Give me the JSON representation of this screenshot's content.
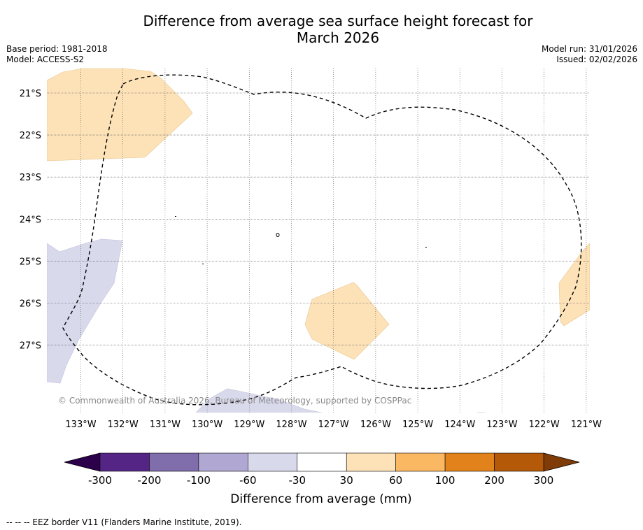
{
  "title_line1": "Difference from average sea surface height forecast for",
  "title_line2": "March 2026",
  "base_period": "Base period: 1981-2018",
  "model": "Model: ACCESS-S2",
  "model_run": "Model run: 31/01/2026",
  "issued": "Issued: 02/02/2026",
  "map": {
    "lon_labels": [
      "133°W",
      "132°W",
      "131°W",
      "130°W",
      "129°W",
      "128°W",
      "127°W",
      "126°W",
      "125°W",
      "124°W",
      "123°W",
      "122°W",
      "121°W"
    ],
    "lat_labels": [
      "21°S",
      "22°S",
      "23°S",
      "24°S",
      "25°S",
      "26°S",
      "27°S"
    ],
    "copyright": "© Commonwealth of Australia 2026, Bureau of Meteorology, supported by COSPPac"
  },
  "colorbar": {
    "ticks": [
      "-300",
      "-200",
      "-100",
      "-60",
      "-30",
      "30",
      "60",
      "100",
      "200",
      "300"
    ],
    "colors": [
      "#552586",
      "#7f6dac",
      "#b0a8d2",
      "#d9d9ec",
      "#ffffff",
      "#fde2b8",
      "#fbb863",
      "#e2821a",
      "#b35908"
    ],
    "low_extend_color": "#2d004b",
    "high_extend_color": "#7f3b08",
    "label": "Difference from average (mm)"
  },
  "legend_text": "--  --  -- EEZ border V11 (Flanders Marine Institute, 2019)."
}
